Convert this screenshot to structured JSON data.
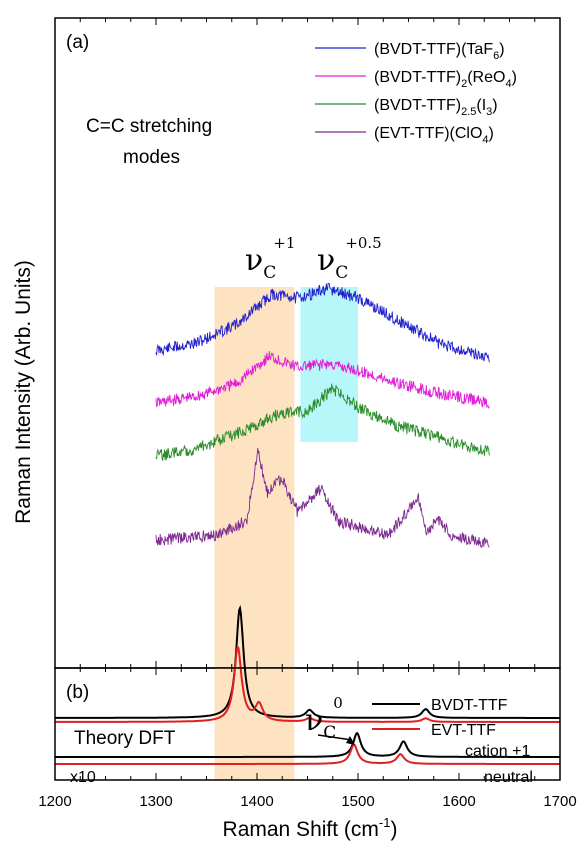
{
  "chart_data": [
    {
      "type": "line",
      "panel_label": "(a)",
      "annotation": [
        "C=C stretching",
        "modes"
      ],
      "ylabel": "Raman Intensity (Arb. Units)",
      "xlim": [
        1200,
        1700
      ],
      "x_range": [
        1300,
        1630
      ],
      "bands": [
        {
          "name": "ν_C^{+1}",
          "symbol": "ν",
          "sub": "C",
          "sup": "+1",
          "x": [
            1358,
            1437
          ],
          "color": "#fde3c2"
        },
        {
          "name": "ν_C^{+0.5}",
          "symbol": "ν",
          "sub": "C",
          "sup": "+0.5",
          "x": [
            1443,
            1500
          ],
          "color": "#b8f7f9"
        }
      ],
      "series": [
        {
          "name": "(BVDT-TTF)(TaF6)",
          "label": {
            "base": "(BVDT-TTF)(TaF",
            "sub": "6",
            "end": ")"
          },
          "color": "#2020cc",
          "points": [
            [
              1300,
              0.1
            ],
            [
              1340,
              0.2
            ],
            [
              1380,
              0.45
            ],
            [
              1415,
              0.85
            ],
            [
              1440,
              0.8
            ],
            [
              1470,
              0.92
            ],
            [
              1500,
              0.8
            ],
            [
              1540,
              0.5
            ],
            [
              1580,
              0.2
            ],
            [
              1630,
              0.0
            ]
          ]
        },
        {
          "name": "(BVDT-TTF)2(ReO4)",
          "label": {
            "base": "(BVDT-TTF)",
            "sub": "2",
            "mid": "(ReO",
            "sub2": "4",
            "end": ")"
          },
          "color": "#e020d8",
          "points": [
            [
              1300,
              0.0
            ],
            [
              1340,
              0.1
            ],
            [
              1380,
              0.3
            ],
            [
              1412,
              0.72
            ],
            [
              1440,
              0.55
            ],
            [
              1470,
              0.6
            ],
            [
              1500,
              0.5
            ],
            [
              1540,
              0.3
            ],
            [
              1580,
              0.15
            ],
            [
              1630,
              0.0
            ]
          ]
        },
        {
          "name": "(BVDT-TTF)2.5(I3)",
          "label": {
            "base": "(BVDT-TTF)",
            "sub": "2.5",
            "mid": "(I",
            "sub2": "3",
            "end": ")"
          },
          "color": "#2a8c2a",
          "points": [
            [
              1300,
              0.0
            ],
            [
              1340,
              0.1
            ],
            [
              1380,
              0.3
            ],
            [
              1420,
              0.55
            ],
            [
              1450,
              0.6
            ],
            [
              1475,
              0.9
            ],
            [
              1500,
              0.65
            ],
            [
              1540,
              0.4
            ],
            [
              1580,
              0.25
            ],
            [
              1630,
              0.05
            ]
          ]
        },
        {
          "name": "(EVT-TTF)(ClO4)",
          "label": {
            "base": "(EVT-TTF)(ClO",
            "sub": "4",
            "end": ")"
          },
          "color": "#7d2a90",
          "points": [
            [
              1300,
              0.0
            ],
            [
              1360,
              0.05
            ],
            [
              1390,
              0.2
            ],
            [
              1401,
              0.95
            ],
            [
              1410,
              0.5
            ],
            [
              1424,
              0.65
            ],
            [
              1440,
              0.3
            ],
            [
              1464,
              0.55
            ],
            [
              1480,
              0.2
            ],
            [
              1530,
              0.05
            ],
            [
              1560,
              0.45
            ],
            [
              1568,
              0.1
            ],
            [
              1582,
              0.22
            ],
            [
              1590,
              0.05
            ],
            [
              1630,
              -0.05
            ]
          ]
        }
      ]
    },
    {
      "type": "line",
      "panel_label": "(b)",
      "annotation": "Theory DFT",
      "xlabel": "Raman Shift (cm",
      "xlabel_sup": "-1",
      "xlabel_end": ")",
      "xlim": [
        1200,
        1700
      ],
      "xticks": [
        1200,
        1300,
        1400,
        1500,
        1600,
        1700
      ],
      "band": {
        "x": [
          1358,
          1437
        ],
        "color": "#fde3c2"
      },
      "marker": {
        "symbol": "ν",
        "sub": "C",
        "sup": "0",
        "points_to_x": 1497
      },
      "scale_note": "x10",
      "group_labels": [
        "cation +1",
        "neutral"
      ],
      "series": [
        {
          "name": "BVDT-TTF",
          "color": "#000000",
          "cation_peaks": [
            [
              1383,
              1.0
            ],
            [
              1452,
              0.07
            ],
            [
              1567,
              0.08
            ]
          ],
          "neutral_peaks": [
            [
              1499,
              0.85
            ],
            [
              1545,
              0.55
            ]
          ]
        },
        {
          "name": "EVT-TTF",
          "color": "#e02020",
          "cation_peaks": [
            [
              1381,
              0.62
            ],
            [
              1402,
              0.14
            ],
            [
              1452,
              0.03
            ],
            [
              1567,
              0.03
            ]
          ],
          "neutral_peaks": [
            [
              1496,
              0.6
            ],
            [
              1542,
              0.3
            ]
          ]
        }
      ]
    }
  ]
}
